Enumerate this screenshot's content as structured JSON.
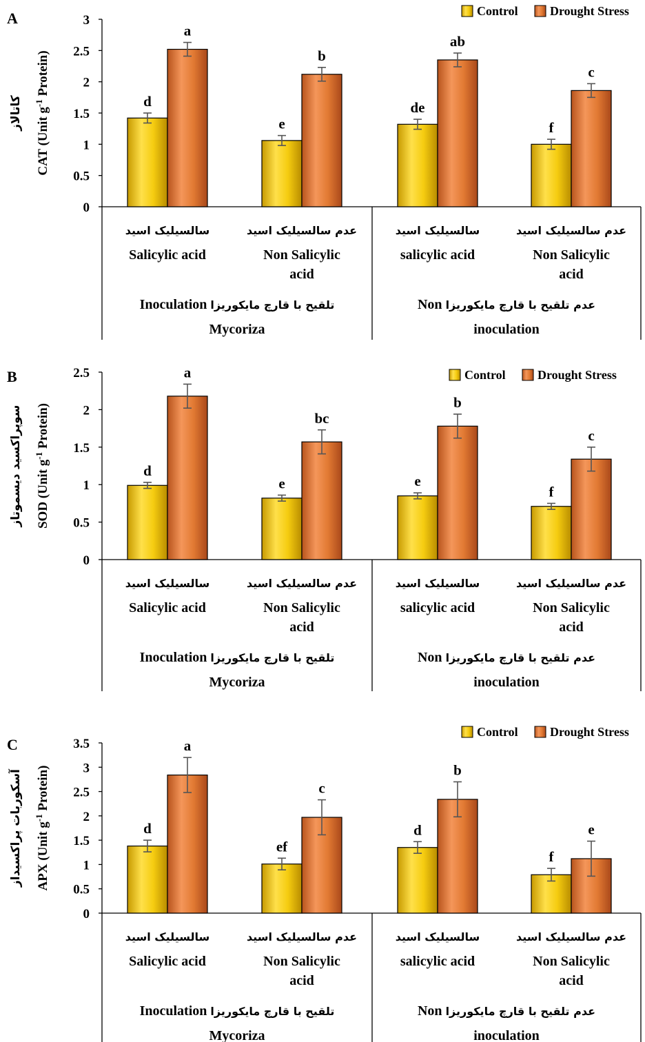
{
  "colors": {
    "control": "#f2c200",
    "drought": "#e0782f",
    "axis": "#000000",
    "error": "#555555"
  },
  "legend": {
    "control": "Control",
    "drought": "Drought Stress"
  },
  "categories": [
    {
      "fa": "سالسیلیک اسید",
      "en1": "Salicylic acid",
      "en2": ""
    },
    {
      "fa": "عدم سالسیلیک اسید",
      "en1": "Non Salicylic",
      "en2": "acid"
    },
    {
      "fa": "سالسیلیک اسید",
      "en1": "salicylic acid",
      "en2": ""
    },
    {
      "fa": "عدم سالسیلیک اسید",
      "en1": "Non Salicylic",
      "en2": "acid"
    }
  ],
  "groups": [
    {
      "en": "Inoculation",
      "fa": "تلقیح با قارچ مایکوریزا",
      "en2": "Mycoriza"
    },
    {
      "en": "Non",
      "fa": "عدم تلقیح با قارچ مایکوریزا",
      "en2": "inoculation"
    }
  ],
  "chart_data": [
    {
      "type": "bar",
      "panel": "A",
      "ylabel": "CAT (Unit g-1 Protein)",
      "ylabel_fa": "کاتالاز",
      "ylim": [
        0,
        3
      ],
      "yticks": [
        "0",
        "0.5",
        "1",
        "1.5",
        "2",
        "2.5",
        "3"
      ],
      "legend_position": "top-right",
      "series": [
        {
          "name": "Control",
          "values": [
            1.42,
            1.06,
            1.32,
            1.0
          ],
          "errors": [
            0.08,
            0.08,
            0.08,
            0.08
          ],
          "letters": [
            "d",
            "e",
            "de",
            "f"
          ]
        },
        {
          "name": "Drought Stress",
          "values": [
            2.52,
            2.12,
            2.35,
            1.86
          ],
          "errors": [
            0.11,
            0.11,
            0.11,
            0.11
          ],
          "letters": [
            "a",
            "b",
            "ab",
            "c"
          ]
        }
      ]
    },
    {
      "type": "bar",
      "panel": "B",
      "ylabel": "SOD (Unit g-1 Protein)",
      "ylabel_fa": "سوپراکسید دیسموتاز",
      "ylim": [
        0,
        2.5
      ],
      "yticks": [
        "0",
        "0.5",
        "1",
        "1.5",
        "2",
        "2.5"
      ],
      "legend_position": "top-right",
      "series": [
        {
          "name": "Control",
          "values": [
            0.99,
            0.82,
            0.85,
            0.71
          ],
          "errors": [
            0.04,
            0.04,
            0.04,
            0.04
          ],
          "letters": [
            "d",
            "e",
            "e",
            "f"
          ]
        },
        {
          "name": "Drought Stress",
          "values": [
            2.18,
            1.57,
            1.78,
            1.34
          ],
          "errors": [
            0.16,
            0.16,
            0.16,
            0.16
          ],
          "letters": [
            "a",
            "bc",
            "b",
            "c"
          ]
        }
      ]
    },
    {
      "type": "bar",
      "panel": "C",
      "ylabel": "APX (Unit g-1 Protein)",
      "ylabel_fa": "آسکوربات پراکسیداز",
      "ylim": [
        0,
        3.5
      ],
      "yticks": [
        "0",
        "0.5",
        "1",
        "1.5",
        "2",
        "2.5",
        "3",
        "3.5"
      ],
      "legend_position": "top-right",
      "series": [
        {
          "name": "Control",
          "values": [
            1.38,
            1.01,
            1.35,
            0.79
          ],
          "errors": [
            0.12,
            0.12,
            0.12,
            0.13
          ],
          "letters": [
            "d",
            "ef",
            "d",
            "f"
          ]
        },
        {
          "name": "Drought Stress",
          "values": [
            2.84,
            1.97,
            2.34,
            1.12
          ],
          "errors": [
            0.36,
            0.36,
            0.36,
            0.36
          ],
          "letters": [
            "a",
            "c",
            "b",
            "e"
          ]
        }
      ]
    }
  ]
}
